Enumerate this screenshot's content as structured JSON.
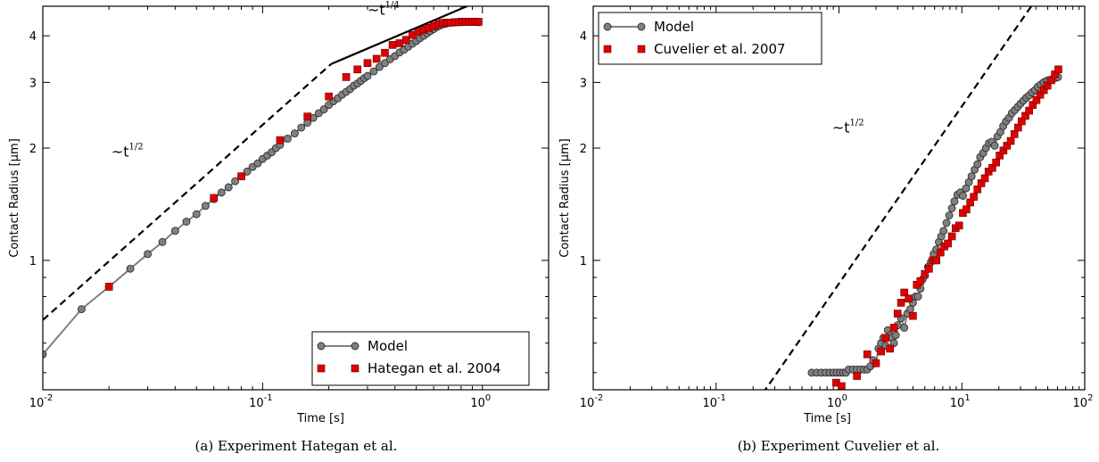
{
  "chart_data": [
    {
      "type": "scatter",
      "xscale": "log",
      "yscale": "log",
      "xlim": [
        0.01,
        2
      ],
      "ylim": [
        0.45,
        4.8
      ],
      "xlabel": "Time [s]",
      "ylabel": "Contact Radius [μm]",
      "xticks": [
        {
          "v": 0.01,
          "base": "10",
          "exp": "-2"
        },
        {
          "v": 0.1,
          "base": "10",
          "exp": "-1"
        },
        {
          "v": 1,
          "base": "10",
          "exp": "0"
        }
      ],
      "yticks": [
        {
          "v": 1,
          "label": "1"
        },
        {
          "v": 2,
          "label": "2"
        },
        {
          "v": 3,
          "label": "3"
        },
        {
          "v": 4,
          "label": "4"
        }
      ],
      "legend_position": "lower-right",
      "caption": "(a) Experiment Hategan et al.",
      "series": [
        {
          "name": "Model",
          "style": "line-circle",
          "color": "#808080",
          "x": [
            0.01,
            0.015,
            0.02,
            0.025,
            0.03,
            0.035,
            0.04,
            0.045,
            0.05,
            0.055,
            0.06,
            0.065,
            0.07,
            0.075,
            0.08,
            0.085,
            0.09,
            0.095,
            0.1,
            0.105,
            0.11,
            0.115,
            0.12,
            0.13,
            0.14,
            0.15,
            0.16,
            0.17,
            0.18,
            0.19,
            0.2,
            0.21,
            0.22,
            0.23,
            0.24,
            0.25,
            0.26,
            0.27,
            0.28,
            0.29,
            0.3,
            0.32,
            0.34,
            0.36,
            0.38,
            0.4,
            0.42,
            0.44,
            0.46,
            0.48,
            0.5,
            0.52,
            0.54,
            0.56,
            0.58,
            0.6,
            0.62,
            0.64,
            0.66,
            0.68,
            0.7,
            0.72,
            0.74,
            0.76,
            0.78,
            0.8,
            0.82,
            0.84,
            0.86,
            0.88,
            0.9,
            0.92,
            0.94,
            0.96
          ],
          "y": [
            0.56,
            0.74,
            0.85,
            0.95,
            1.04,
            1.12,
            1.2,
            1.27,
            1.33,
            1.4,
            1.46,
            1.52,
            1.57,
            1.63,
            1.68,
            1.73,
            1.78,
            1.82,
            1.87,
            1.91,
            1.95,
            2.0,
            2.04,
            2.12,
            2.19,
            2.27,
            2.34,
            2.41,
            2.48,
            2.54,
            2.61,
            2.67,
            2.72,
            2.78,
            2.83,
            2.88,
            2.94,
            2.98,
            3.03,
            3.08,
            3.12,
            3.21,
            3.3,
            3.38,
            3.46,
            3.53,
            3.61,
            3.67,
            3.74,
            3.81,
            3.87,
            3.94,
            4.0,
            4.06,
            4.12,
            4.17,
            4.22,
            4.26,
            4.29,
            4.31,
            4.33,
            4.34,
            4.35,
            4.35,
            4.36,
            4.36,
            4.36,
            4.36,
            4.36,
            4.36,
            4.36,
            4.36,
            4.36,
            4.35
          ]
        },
        {
          "name": "Hategan et al. 2004",
          "style": "square",
          "color": "#e00000",
          "x": [
            0.02,
            0.06,
            0.08,
            0.12,
            0.16,
            0.2,
            0.24,
            0.27,
            0.3,
            0.33,
            0.36,
            0.39,
            0.42,
            0.45,
            0.48,
            0.51,
            0.54,
            0.57,
            0.6,
            0.63,
            0.66,
            0.69,
            0.72,
            0.75,
            0.78,
            0.81,
            0.84,
            0.87,
            0.9,
            0.93,
            0.96
          ],
          "y": [
            0.85,
            1.47,
            1.68,
            2.1,
            2.43,
            2.75,
            3.1,
            3.25,
            3.38,
            3.47,
            3.6,
            3.78,
            3.82,
            3.9,
            4.02,
            4.1,
            4.15,
            4.2,
            4.25,
            4.3,
            4.33,
            4.34,
            4.34,
            4.35,
            4.35,
            4.36,
            4.36,
            4.36,
            4.36,
            4.36,
            4.36
          ]
        },
        {
          "name": "",
          "style": "dashed",
          "color": "#000000",
          "x": [
            0.01,
            0.205
          ],
          "y": [
            0.692,
            3.36
          ]
        },
        {
          "name": "",
          "style": "solid",
          "color": "#000000",
          "x": [
            0.205,
            1.0
          ],
          "y": [
            3.36,
            5.0
          ]
        }
      ],
      "annotations": [
        {
          "base": "~t",
          "exp": "1/2",
          "x": 0.0205,
          "y": 1.9
        },
        {
          "base": "~t",
          "exp": "1/4",
          "x": 0.3,
          "y": 4.55
        }
      ]
    },
    {
      "type": "scatter",
      "xscale": "log",
      "yscale": "log",
      "xlim": [
        0.01,
        100
      ],
      "ylim": [
        0.45,
        4.8
      ],
      "xlabel": "Time [s]",
      "ylabel": "Contact Radius [μm]",
      "xticks": [
        {
          "v": 0.01,
          "base": "10",
          "exp": "-2"
        },
        {
          "v": 0.1,
          "base": "10",
          "exp": "-1"
        },
        {
          "v": 1,
          "base": "10",
          "exp": "0"
        },
        {
          "v": 10,
          "base": "10",
          "exp": "1"
        },
        {
          "v": 100,
          "base": "10",
          "exp": "2"
        }
      ],
      "yticks": [
        {
          "v": 1,
          "label": "1"
        },
        {
          "v": 2,
          "label": "2"
        },
        {
          "v": 3,
          "label": "3"
        },
        {
          "v": 4,
          "label": "4"
        }
      ],
      "legend_position": "upper-left",
      "caption": "(b) Experiment Cuvelier et al.",
      "series": [
        {
          "name": "Model",
          "style": "line-circle",
          "color": "#808080",
          "x": [
            0.6,
            0.66,
            0.72,
            0.78,
            0.84,
            0.9,
            0.96,
            1.02,
            1.08,
            1.14,
            1.2,
            1.3,
            1.4,
            1.5,
            1.6,
            1.7,
            1.8,
            1.9,
            2.0,
            2.1,
            2.2,
            2.3,
            2.4,
            2.5,
            2.6,
            2.7,
            2.8,
            2.9,
            3.0,
            3.2,
            3.4,
            3.6,
            3.8,
            4.0,
            4.2,
            4.4,
            4.6,
            4.8,
            5.0,
            5.3,
            5.6,
            5.9,
            6.2,
            6.5,
            6.8,
            7.1,
            7.5,
            7.9,
            8.3,
            8.7,
            9.2,
            9.7,
            10.2,
            10.8,
            11.4,
            12.0,
            12.7,
            13.4,
            14.1,
            14.9,
            15.7,
            16.6,
            17.5,
            18.5,
            19.5,
            20.6,
            21.7,
            22.9,
            24.2,
            25.5,
            27.0,
            28.5,
            30.0,
            31.7,
            33.5,
            35.3,
            37.3,
            39.4,
            41.5,
            43.8,
            46.3,
            48.9,
            51.6,
            54.4,
            57.4,
            60.6
          ],
          "y": [
            0.5,
            0.5,
            0.5,
            0.5,
            0.5,
            0.5,
            0.5,
            0.5,
            0.5,
            0.5,
            0.51,
            0.51,
            0.51,
            0.51,
            0.51,
            0.51,
            0.52,
            0.54,
            0.53,
            0.58,
            0.6,
            0.62,
            0.59,
            0.65,
            0.63,
            0.62,
            0.6,
            0.63,
            0.67,
            0.7,
            0.66,
            0.72,
            0.74,
            0.77,
            0.8,
            0.8,
            0.84,
            0.89,
            0.91,
            0.96,
            0.99,
            1.04,
            1.07,
            1.12,
            1.16,
            1.2,
            1.26,
            1.32,
            1.38,
            1.44,
            1.5,
            1.52,
            1.49,
            1.56,
            1.62,
            1.68,
            1.75,
            1.81,
            1.89,
            1.94,
            2.0,
            2.06,
            2.08,
            2.03,
            2.15,
            2.21,
            2.29,
            2.36,
            2.41,
            2.48,
            2.53,
            2.58,
            2.63,
            2.68,
            2.73,
            2.77,
            2.82,
            2.86,
            2.92,
            2.96,
            3.0,
            3.03,
            3.04,
            3.06,
            3.08,
            3.1
          ]
        },
        {
          "name": "Cuvelier et al. 2007",
          "style": "square",
          "color": "#e00000",
          "x": [
            0.95,
            1.05,
            1.4,
            1.7,
            2.0,
            2.2,
            2.4,
            2.6,
            2.8,
            3.0,
            3.2,
            3.4,
            3.7,
            4.0,
            4.3,
            4.6,
            5.0,
            5.4,
            5.8,
            6.2,
            6.7,
            7.2,
            7.7,
            8.3,
            8.9,
            9.5,
            10.2,
            10.9,
            11.7,
            12.5,
            13.4,
            14.4,
            15.4,
            16.5,
            17.7,
            19.0,
            20.3,
            21.8,
            23.3,
            25.0,
            26.8,
            28.7,
            30.7,
            32.9,
            35.3,
            37.8,
            40.5,
            43.4,
            46.5,
            49.8,
            53.4,
            57.2,
            61.0
          ],
          "y": [
            0.47,
            0.46,
            0.49,
            0.56,
            0.53,
            0.57,
            0.62,
            0.58,
            0.66,
            0.72,
            0.77,
            0.82,
            0.79,
            0.71,
            0.86,
            0.88,
            0.92,
            0.95,
            1.0,
            1.0,
            1.05,
            1.09,
            1.11,
            1.16,
            1.22,
            1.24,
            1.34,
            1.37,
            1.43,
            1.48,
            1.55,
            1.61,
            1.66,
            1.73,
            1.77,
            1.83,
            1.91,
            1.97,
            2.03,
            2.09,
            2.18,
            2.27,
            2.36,
            2.44,
            2.52,
            2.61,
            2.69,
            2.78,
            2.86,
            2.94,
            3.04,
            3.15,
            3.25
          ]
        },
        {
          "name": "",
          "style": "dashed",
          "color": "#000000",
          "x": [
            0.24,
            40.0
          ],
          "y": [
            0.44,
            5.0
          ]
        }
      ],
      "annotations": [
        {
          "base": "~t",
          "exp": "1/2",
          "x": 0.88,
          "y": 2.2
        }
      ]
    }
  ]
}
